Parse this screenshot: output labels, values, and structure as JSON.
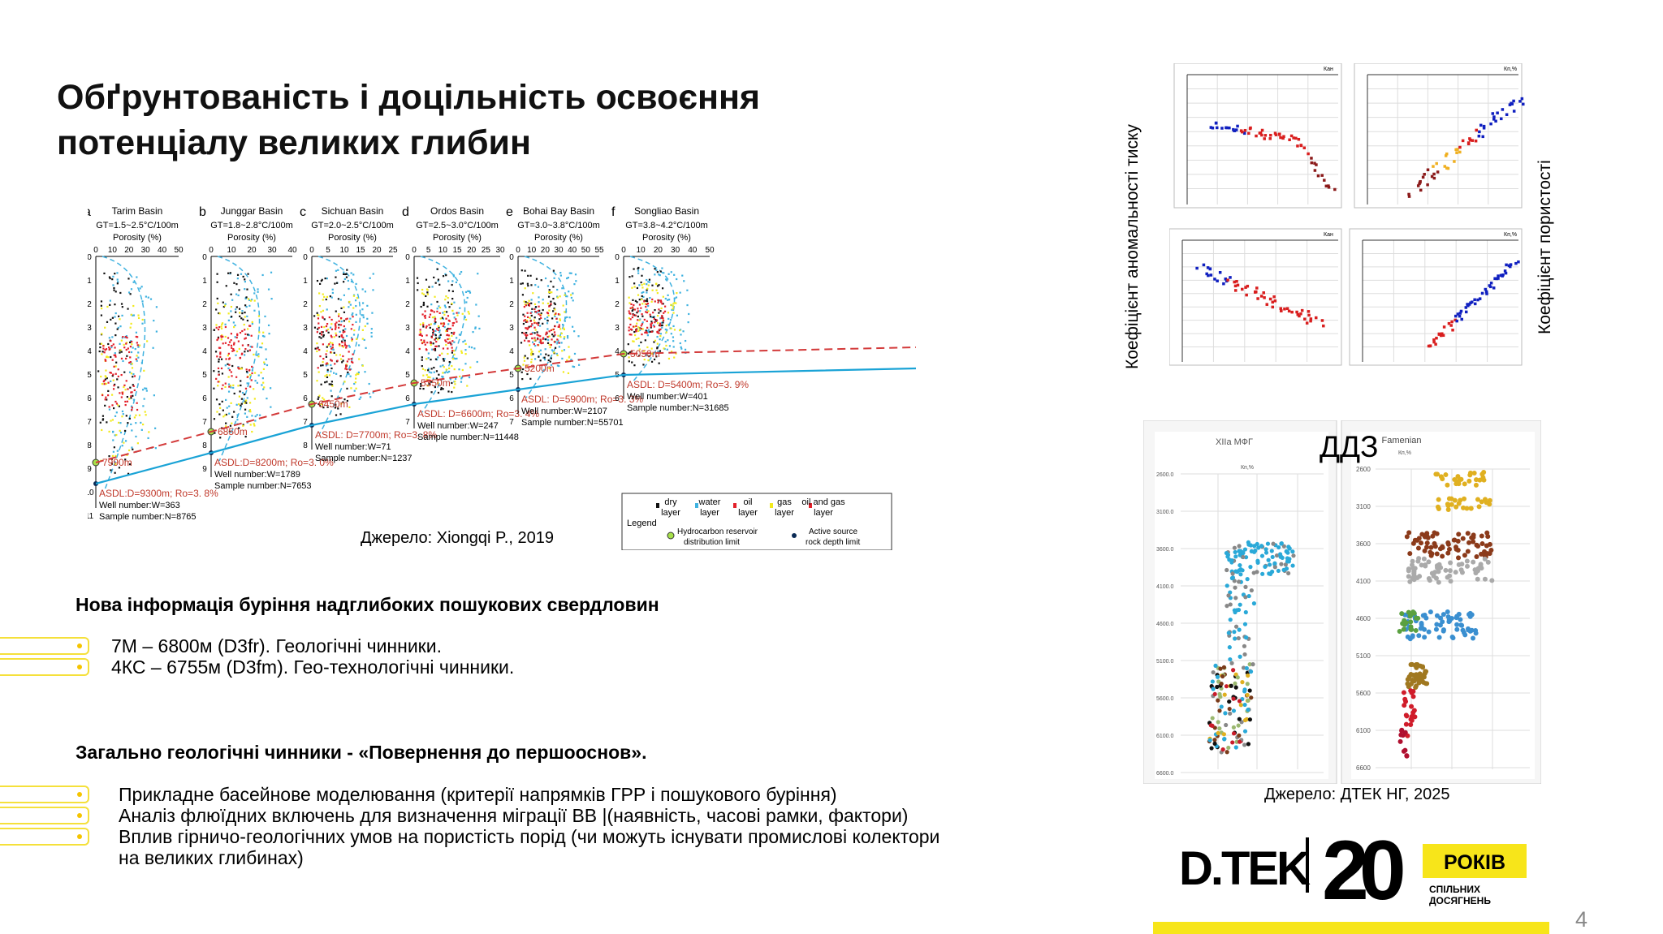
{
  "title": {
    "line1": "Обґрунтованість і доцільність освоєння",
    "line2": "потенціалу великих глибин"
  },
  "basins_figure": {
    "panels": [
      {
        "letter": "a",
        "name": "Tarim Basin",
        "gt": "GT=1.5~2.5°C/100m",
        "axis": "Porosity (%)",
        "ticks": [
          "0",
          "10",
          "20",
          "30",
          "40",
          "50"
        ],
        "depth_label": "7990m",
        "asdl": "ASDL:D=9300m; Ro=3. 8%",
        "wells": "Well number:W=363",
        "samples": "Sample number:N=8765"
      },
      {
        "letter": "b",
        "name": "Junggar Basin",
        "gt": "GT=1.8~2.8°C/100m",
        "axis": "Porosity (%)",
        "ticks": [
          "0",
          "10",
          "20",
          "30",
          "40"
        ],
        "depth_label": "6850m",
        "asdl": "ASDL:D=8200m; Ro=3. 0%",
        "wells": "Well number:W=1789",
        "samples": "Sample number:N=7653"
      },
      {
        "letter": "c",
        "name": "Sichuan Basin",
        "gt": "GT=2.0~2.5°C/100m",
        "axis": "Porosity (%)",
        "ticks": [
          "0",
          "5",
          "10",
          "15",
          "20",
          "25"
        ],
        "depth_label": "6450m",
        "asdl": "ASDL: D=7700m; Ro=3. 8%",
        "wells": "Well number:W=71",
        "samples": "Sample number:N=1237"
      },
      {
        "letter": "d",
        "name": "Ordos Basin",
        "gt": "GT=2.5~3.0°C/100m",
        "axis": "Porosity (%)",
        "ticks": [
          "0",
          "5",
          "10",
          "15",
          "20",
          "25",
          "30"
        ],
        "depth_label": "5350m",
        "asdl": "ASDL: D=6600m; Ro=3. 4%",
        "wells": "Well number:W=247",
        "samples": "Sample number:N=11448"
      },
      {
        "letter": "e",
        "name": "Bohai Bay Basin",
        "gt": "GT=3.0~3.8°C/100m",
        "axis": "Porosity (%)",
        "ticks": [
          "0",
          "10",
          "20",
          "30",
          "40",
          "50",
          "55"
        ],
        "depth_label": "5200m",
        "asdl": "ASDL: D=5900m; Ro=3. 3%",
        "wells": "Well number:W=2107",
        "samples": "Sample number:N=55701"
      },
      {
        "letter": "f",
        "name": "Songliao Basin",
        "gt": "GT=3.8~4.2°C/100m",
        "axis": "Porosity (%)",
        "ticks": [
          "0",
          "10",
          "20",
          "30",
          "40",
          "50"
        ],
        "depth_label": "5050m",
        "asdl": "ASDL: D=5400m; Ro=3. 9%",
        "wells": "Well number:W=401",
        "samples": "Sample number:N=31685"
      }
    ],
    "legend": {
      "title": "Legend",
      "items": [
        "dry layer",
        "water layer",
        "oil layer",
        "gas layer",
        "oil and gas layer",
        "Hydrocarbon reservoir distribution limit",
        "Active source rock depth limit"
      ]
    },
    "source": "Джерело: Xiongqi P., 2019"
  },
  "section1": {
    "heading": "Нова інформація буріння надглибоких пошукових свердловин",
    "bullets": [
      "7М –  6800м (D3fr).  Геологічні чинники.",
      "4КС – 6755м (D3fm). Гео-технологічні чинники."
    ]
  },
  "section2": {
    "heading": "Загально геологічні чинники - «Повернення до першооснов».",
    "bullets": [
      "Прикладне басейнове моделювання (критерії напрямків ГРР і пошукового буріння)",
      "Аналіз флюїдних включень для визначення міграції ВВ |(наявність, часові рамки, фактори)",
      "Вплив гірничо-геологічних умов на пористість порід (чи можуть існувати промислові колектори",
      "на великих глибинах)"
    ]
  },
  "right_top": {
    "left_label": "Коефіцієнт аномальності тиску",
    "right_label": "Коефіцієнт пористості",
    "ka_label": "Кан",
    "kp_label": "Кп,%"
  },
  "right_bottom": {
    "overlay_label": "ДДЗ",
    "left_title": "XIIa МФГ",
    "right_title": "Famenian",
    "axis_unit": "Кп,%",
    "left_depths": [
      "2600.0",
      "3100.0",
      "3600.0",
      "4100.0",
      "4600.0",
      "5100.0",
      "5600.0",
      "6100.0",
      "6600.0"
    ],
    "right_depths": [
      "2600",
      "3100",
      "3600",
      "4100",
      "4600",
      "5100",
      "5600",
      "6100",
      "6600"
    ],
    "source": "Джерело: ДТЕК НГ, 2025"
  },
  "logo": {
    "brand": "D.TEK",
    "number": "20",
    "years": "РОКІВ",
    "tagline1": "СПІЛЬНИХ",
    "tagline2": "ДОСЯГНЕНЬ"
  },
  "page_number": "4",
  "colors": {
    "accent_yellow": "#f7e51a",
    "bullet_yellow": "#f5e03a",
    "red_line": "#d33a3a",
    "blue_line": "#1aa3d6"
  }
}
